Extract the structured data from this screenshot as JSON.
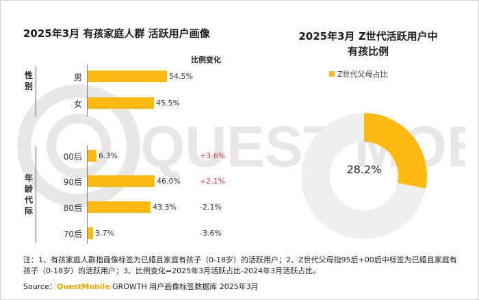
{
  "left_title": "2025年3月 有孩家庭人群 活跃用户画像",
  "right_title_line1": "2025年3月 Z世代活跃用户中",
  "right_title_line2": "有孩比例",
  "change_header": "比例变化",
  "groups": [
    {
      "label": "性别",
      "chars": [
        "性",
        "别"
      ]
    },
    {
      "label": "年龄代际",
      "chars": [
        "年",
        "龄",
        "代",
        "际"
      ]
    }
  ],
  "colors": {
    "bar": "#fdba13",
    "donut_ring": "#efefef",
    "positive_change": "#e53935",
    "neutral_change": "#333333"
  },
  "chart_data": [
    {
      "type": "bar",
      "orientation": "horizontal",
      "title": "2025年3月 有孩家庭人群 活跃用户画像",
      "categories": [
        "男",
        "女",
        "00后",
        "90后",
        "80后",
        "70后"
      ],
      "values": [
        54.5,
        45.5,
        6.3,
        46.0,
        43.3,
        3.7
      ],
      "value_labels": [
        "54.5%",
        "45.5%",
        "6.3%",
        "46.0%",
        "43.3%",
        "3.7%"
      ],
      "change_header": "比例变化",
      "changes": [
        "",
        "",
        "+3.6%",
        "+2.1%",
        "-2.1%",
        "-3.6%"
      ],
      "xlim": [
        0,
        60
      ],
      "grid": false
    },
    {
      "type": "pie",
      "style": "donut",
      "title": "2025年3月 Z世代活跃用户中有孩比例",
      "legend": [
        "Z世代父母占比"
      ],
      "legend_position": "top",
      "slices": [
        {
          "name": "Z世代父母占比",
          "value": 28.2
        },
        {
          "name": "",
          "value": 71.8
        }
      ],
      "center_label": "28.2%"
    }
  ],
  "note_text": "注：1、有孩家庭人群指画像标签为已婚且家庭有孩子（0-18岁）的活跃用户；2、Z世代父母指95后+00后中标签为已婚且家庭有孩子（0-18岁）的活跃用户；3、比例变化=2025年3月活跃占比-2024年3月活跃占比。",
  "source_prefix": "Source：",
  "source_brand": "QuestMobile",
  "source_suffix": " GROWTH 用户画像标签数据库 2025年3月",
  "watermark_text": "QUEST MOBILE"
}
